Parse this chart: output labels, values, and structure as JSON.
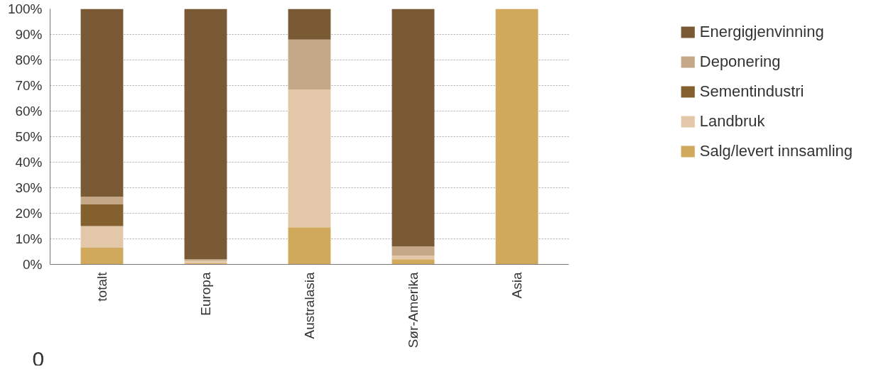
{
  "chart_data": {
    "type": "bar",
    "stacked": true,
    "categories": [
      "totalt",
      "Europa",
      "Australasia",
      "Sør-Amerika",
      "Asia"
    ],
    "series": [
      {
        "name": "Salg/levert innsamling",
        "color": "#d1a95c",
        "values": [
          6.5,
          0.5,
          14.5,
          2,
          100
        ]
      },
      {
        "name": "Landbruk",
        "color": "#e2c8a8",
        "values": [
          8.5,
          1,
          54,
          1.5,
          0
        ]
      },
      {
        "name": "Sementindustri",
        "color": "#84602f",
        "values": [
          8.5,
          0,
          0,
          0,
          0
        ]
      },
      {
        "name": "Deponering",
        "color": "#c4a888",
        "values": [
          3,
          0.5,
          19.5,
          3.5,
          0
        ]
      },
      {
        "name": "Energigjenvinning",
        "color": "#7a5a35",
        "values": [
          73.5,
          98,
          12,
          93,
          0
        ]
      }
    ],
    "ylim": [
      0,
      100
    ],
    "yticks": [
      {
        "value": 0,
        "label": "0%"
      },
      {
        "value": 10,
        "label": "10%"
      },
      {
        "value": 20,
        "label": "20%"
      },
      {
        "value": 30,
        "label": "30%"
      },
      {
        "value": 40,
        "label": "40%"
      },
      {
        "value": 50,
        "label": "50%"
      },
      {
        "value": 60,
        "label": "60%"
      },
      {
        "value": 70,
        "label": "70%"
      },
      {
        "value": 80,
        "label": "80%"
      },
      {
        "value": 90,
        "label": "90%"
      },
      {
        "value": 100,
        "label": "100%"
      }
    ],
    "grid": "y",
    "legend": "right",
    "annotations": [
      "0"
    ]
  }
}
